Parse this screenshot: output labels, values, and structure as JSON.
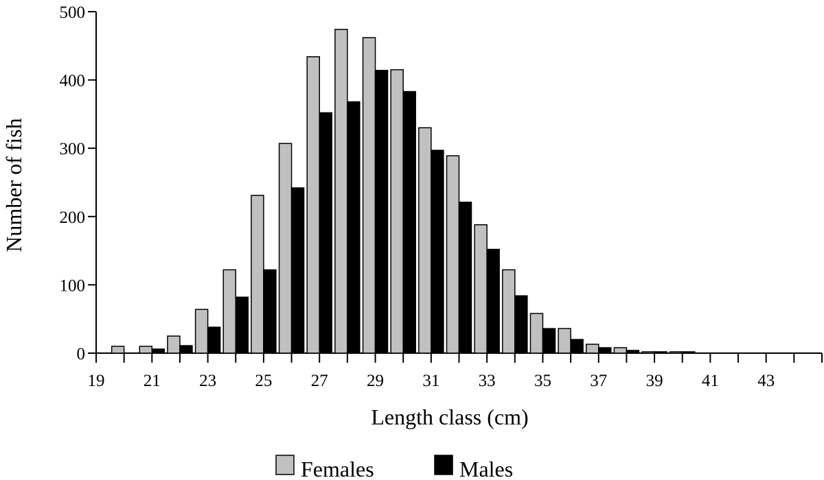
{
  "chart_data": {
    "type": "bar",
    "xlabel": "Length class (cm)",
    "ylabel": "Number of fish",
    "ylim": [
      0,
      500
    ],
    "yticks": [
      "0",
      "100",
      "200",
      "300",
      "400",
      "500"
    ],
    "xticks": [
      "19",
      "21",
      "23",
      "25",
      "27",
      "29",
      "31",
      "33",
      "35",
      "37",
      "39",
      "41",
      "43"
    ],
    "categories": [
      "20",
      "21",
      "22",
      "23",
      "24",
      "25",
      "26",
      "27",
      "28",
      "29",
      "30",
      "31",
      "32",
      "33",
      "34",
      "35",
      "36",
      "37",
      "38",
      "39",
      "40",
      "41",
      "42",
      "43",
      "44"
    ],
    "series": [
      {
        "name": "Females",
        "color": "#c0c0c0",
        "values": [
          10,
          10,
          25,
          64,
          122,
          231,
          307,
          434,
          474,
          462,
          415,
          330,
          289,
          188,
          122,
          58,
          36,
          13,
          8,
          2,
          2,
          0,
          0,
          0,
          0
        ]
      },
      {
        "name": "Males",
        "color": "#000000",
        "values": [
          0,
          6,
          11,
          38,
          82,
          122,
          242,
          352,
          368,
          414,
          383,
          297,
          221,
          152,
          84,
          36,
          20,
          8,
          4,
          2,
          2,
          0,
          0,
          0,
          0
        ]
      }
    ],
    "grid": false,
    "legend_position": "bottom"
  }
}
